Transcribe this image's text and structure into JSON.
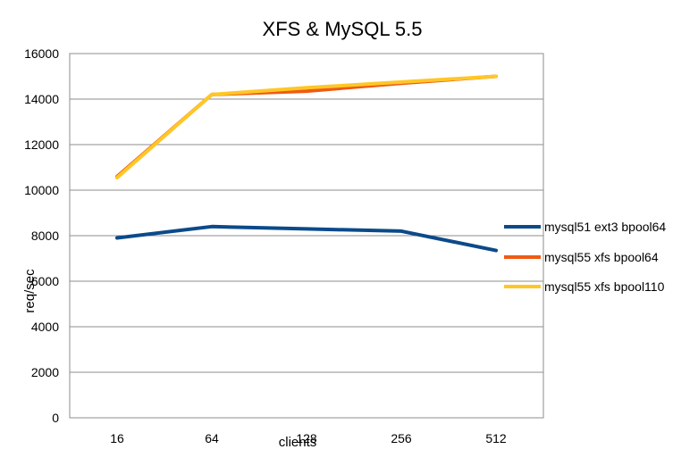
{
  "chart_data": {
    "type": "line",
    "title": "XFS & MySQL 5.5",
    "xlabel": "clients",
    "ylabel": "req/sec",
    "categories": [
      "16",
      "64",
      "128",
      "256",
      "512"
    ],
    "ylim": [
      0,
      16000
    ],
    "y_ticks": [
      "0",
      "2000",
      "4000",
      "6000",
      "8000",
      "10000",
      "12000",
      "14000",
      "16000"
    ],
    "grid": true,
    "legend_position": "right",
    "series": [
      {
        "name": "mysql51 ext3 bpool64",
        "color": "#0b4a8a",
        "values": [
          7900,
          8400,
          8300,
          8200,
          7350
        ]
      },
      {
        "name": "mysql55 xfs bpool64",
        "color": "#f05a14",
        "values": [
          10600,
          14200,
          14350,
          14700,
          15000
        ]
      },
      {
        "name": "mysql55 xfs bpool110",
        "color": "#ffc726",
        "values": [
          10550,
          14200,
          14500,
          14750,
          15000
        ]
      }
    ]
  }
}
